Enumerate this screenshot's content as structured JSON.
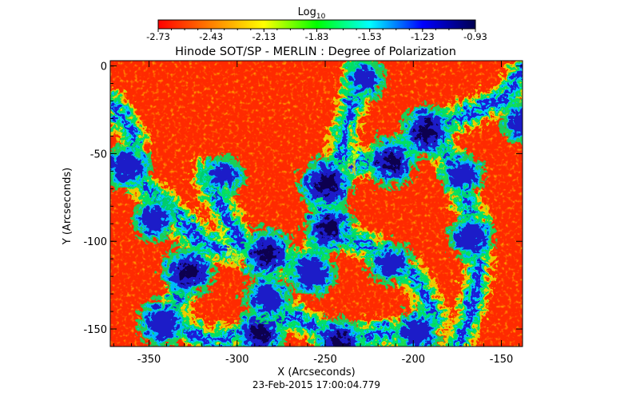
{
  "chart_data": {
    "type": "heatmap",
    "title": "Hinode SOT/SP - MERLIN : Degree of Polarization",
    "xlabel": "X (Arcseconds)",
    "ylabel": "Y (Arcseconds)",
    "footer": "23-Feb-2015 17:00:04.779",
    "colorbar": {
      "title_base": "Log",
      "title_sub": "10",
      "ticks": [
        "-2.73",
        "-2.43",
        "-2.13",
        "-1.83",
        "-1.53",
        "-1.23",
        "-0.93"
      ],
      "min": -2.73,
      "max": -0.93,
      "colormap": [
        "#ff0000",
        "#ff8000",
        "#ffff00",
        "#00ff00",
        "#00ffff",
        "#0000ff",
        "#000050"
      ]
    },
    "xlim": [
      -372,
      -138
    ],
    "ylim": [
      -160,
      3
    ],
    "xticks": [
      {
        "value": -350,
        "label": "-350"
      },
      {
        "value": -300,
        "label": "-300"
      },
      {
        "value": -250,
        "label": "-250"
      },
      {
        "value": -200,
        "label": "-200"
      },
      {
        "value": -150,
        "label": "-150"
      }
    ],
    "yticks": [
      {
        "value": 0,
        "label": "0"
      },
      {
        "value": -50,
        "label": "-50"
      },
      {
        "value": -100,
        "label": "-100"
      },
      {
        "value": -150,
        "label": "-150"
      }
    ],
    "network_regions": [
      {
        "x": -252,
        "y": -65,
        "level": 0.95
      },
      {
        "x": -250,
        "y": -90,
        "level": 0.85
      },
      {
        "x": -195,
        "y": -35,
        "level": 0.95
      },
      {
        "x": -215,
        "y": -52,
        "level": 0.85
      },
      {
        "x": -175,
        "y": -60,
        "level": 0.6
      },
      {
        "x": -330,
        "y": -115,
        "level": 0.9
      },
      {
        "x": -285,
        "y": -105,
        "level": 0.9
      },
      {
        "x": -260,
        "y": -115,
        "level": 0.75
      },
      {
        "x": -345,
        "y": -145,
        "level": 0.75
      },
      {
        "x": -290,
        "y": -150,
        "level": 0.85
      },
      {
        "x": -245,
        "y": -155,
        "level": 0.85
      },
      {
        "x": -200,
        "y": -150,
        "level": 0.65
      },
      {
        "x": -365,
        "y": -55,
        "level": 0.75
      },
      {
        "x": -350,
        "y": -85,
        "level": 0.6
      },
      {
        "x": -170,
        "y": -95,
        "level": 0.7
      },
      {
        "x": -140,
        "y": -30,
        "level": 0.65
      },
      {
        "x": -215,
        "y": -110,
        "level": 0.6
      },
      {
        "x": -310,
        "y": -60,
        "level": 0.45
      },
      {
        "x": -230,
        "y": -5,
        "level": 0.5
      },
      {
        "x": -285,
        "y": -130,
        "level": 0.7
      }
    ],
    "network_paths": [
      [
        [
          -370,
          -55
        ],
        [
          -345,
          -75
        ],
        [
          -320,
          -100
        ],
        [
          -290,
          -105
        ],
        [
          -262,
          -112
        ],
        [
          -250,
          -90
        ],
        [
          -255,
          -66
        ],
        [
          -232,
          -52
        ],
        [
          -214,
          -50
        ],
        [
          -200,
          -38
        ],
        [
          -185,
          -30
        ],
        [
          -170,
          -25
        ],
        [
          -150,
          -15
        ],
        [
          -140,
          0
        ]
      ],
      [
        [
          -190,
          -35
        ],
        [
          -178,
          -60
        ],
        [
          -168,
          -85
        ],
        [
          -165,
          -110
        ],
        [
          -170,
          -140
        ],
        [
          -180,
          -160
        ]
      ],
      [
        [
          -330,
          -115
        ],
        [
          -340,
          -142
        ],
        [
          -320,
          -155
        ],
        [
          -295,
          -150
        ],
        [
          -270,
          -140
        ],
        [
          -245,
          -155
        ],
        [
          -220,
          -150
        ],
        [
          -200,
          -150
        ]
      ],
      [
        [
          -250,
          -90
        ],
        [
          -225,
          -102
        ],
        [
          -200,
          -120
        ],
        [
          -190,
          -140
        ]
      ],
      [
        [
          -300,
          -100
        ],
        [
          -310,
          -80
        ],
        [
          -320,
          -60
        ]
      ],
      [
        [
          -245,
          -55
        ],
        [
          -240,
          -30
        ],
        [
          -235,
          -10
        ],
        [
          -235,
          3
        ]
      ],
      [
        [
          -372,
          -20
        ],
        [
          -360,
          -40
        ],
        [
          -365,
          -60
        ]
      ]
    ]
  }
}
